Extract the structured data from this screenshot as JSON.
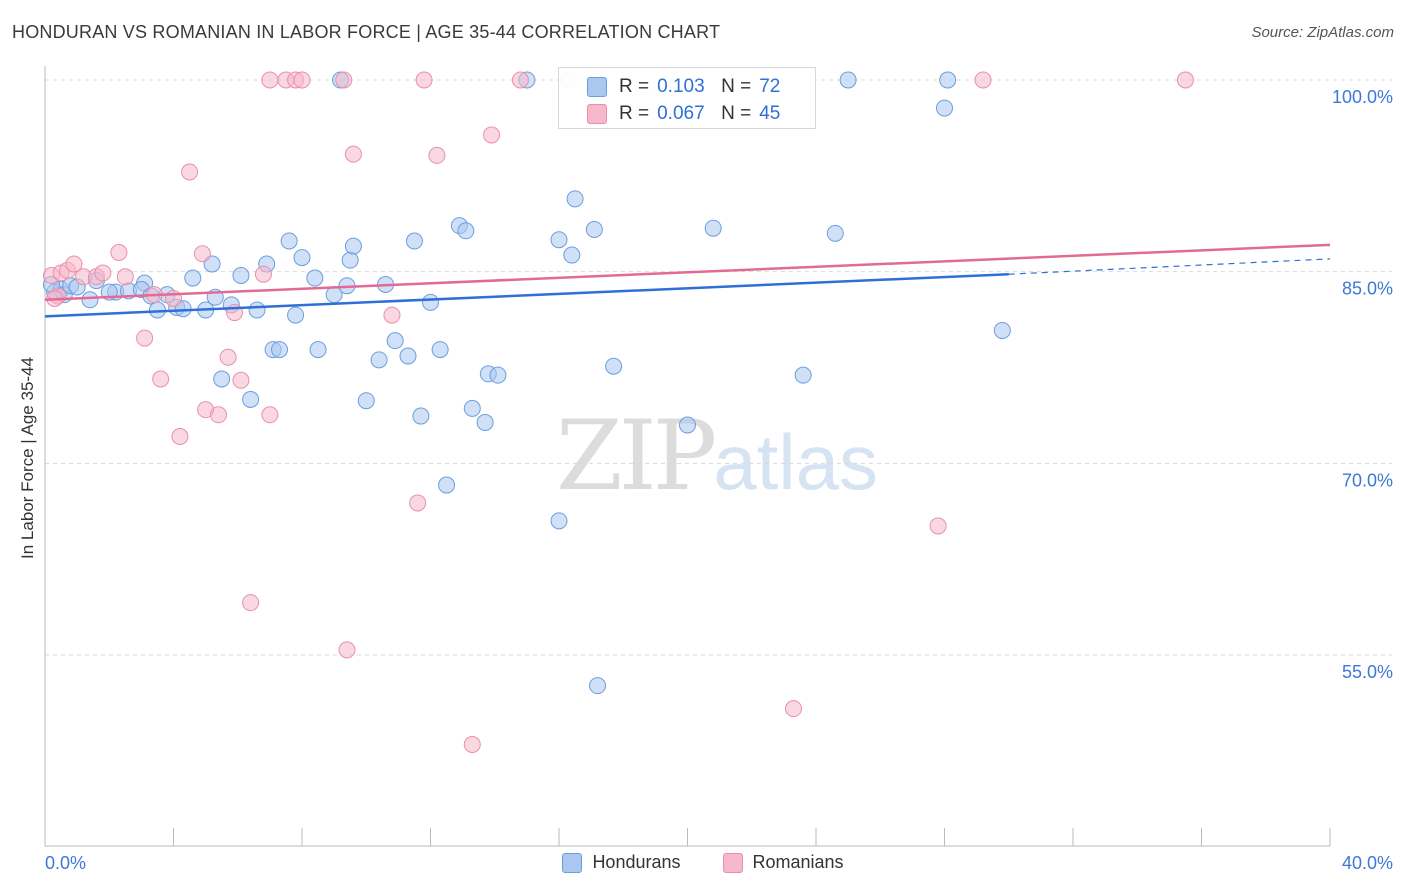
{
  "header": {
    "title": "HONDURAN VS ROMANIAN IN LABOR FORCE | AGE 35-44 CORRELATION CHART",
    "source": "Source: ZipAtlas.com"
  },
  "watermark": {
    "zip": "ZIP",
    "atlas": "atlas"
  },
  "legend": {
    "r_label": "R =",
    "n_label": "N =",
    "rows": [
      {
        "r": "0.103",
        "n": "72"
      },
      {
        "r": "0.067",
        "n": "45"
      }
    ]
  },
  "bottom_legend": {
    "items": [
      "Hondurans",
      "Romanians"
    ]
  },
  "chart_data": {
    "type": "scatter",
    "title": "HONDURAN VS ROMANIAN IN LABOR FORCE | AGE 35-44 CORRELATION CHART",
    "ylabel": "In Labor Force | Age 35-44",
    "xlim": [
      0,
      40
    ],
    "ylim": [
      42,
      102
    ],
    "x_tick_labels": [
      "0.0%",
      "40.0%"
    ],
    "y_ticks": [
      55,
      70,
      85,
      100
    ],
    "y_tick_labels": [
      "55.0%",
      "70.0%",
      "85.0%",
      "100.0%"
    ],
    "grid": "horizontal dashed",
    "legend_position": "top-center",
    "colors": {
      "hondurans_fill": "#a9c7ef",
      "hondurans_stroke": "#6b9ee0",
      "hondurans_line": "#2f6fd6",
      "romanians_fill": "#f6b8cb",
      "romanians_stroke": "#ea8fab",
      "romanians_line": "#e36a95",
      "tick_label": "#3d78d8"
    },
    "series": [
      {
        "name": "Hondurans",
        "r": 0.103,
        "n": 72,
        "trend": {
          "x": [
            0,
            30
          ],
          "y": [
            81.5,
            84.8
          ],
          "dashed_to": [
            40,
            86.0
          ]
        },
        "points": [
          [
            0.3,
            83.4
          ],
          [
            0.5,
            83.6
          ],
          [
            0.6,
            83.2
          ],
          [
            0.8,
            83.9
          ],
          [
            1.0,
            83.8
          ],
          [
            1.4,
            82.8
          ],
          [
            1.6,
            84.3
          ],
          [
            2.2,
            83.4
          ],
          [
            2.6,
            83.5
          ],
          [
            3.1,
            84.1
          ],
          [
            3.0,
            83.6
          ],
          [
            3.3,
            83.1
          ],
          [
            3.5,
            82.0
          ],
          [
            3.8,
            83.2
          ],
          [
            4.1,
            82.2
          ],
          [
            4.3,
            82.1
          ],
          [
            4.6,
            84.5
          ],
          [
            5.0,
            82.0
          ],
          [
            5.2,
            85.6
          ],
          [
            5.3,
            83.0
          ],
          [
            5.5,
            76.6
          ],
          [
            5.8,
            82.4
          ],
          [
            6.1,
            84.7
          ],
          [
            6.4,
            75.0
          ],
          [
            6.6,
            82.0
          ],
          [
            6.9,
            85.6
          ],
          [
            7.1,
            78.9
          ],
          [
            7.3,
            78.9
          ],
          [
            7.6,
            87.4
          ],
          [
            7.8,
            81.6
          ],
          [
            8.0,
            86.1
          ],
          [
            8.4,
            84.5
          ],
          [
            8.5,
            78.9
          ],
          [
            9.0,
            83.2
          ],
          [
            9.4,
            83.9
          ],
          [
            9.5,
            85.9
          ],
          [
            9.6,
            87.0
          ],
          [
            10.0,
            74.9
          ],
          [
            10.4,
            78.1
          ],
          [
            10.6,
            84.0
          ],
          [
            10.9,
            79.6
          ],
          [
            11.3,
            78.4
          ],
          [
            11.5,
            87.4
          ],
          [
            11.7,
            73.7
          ],
          [
            12.0,
            82.6
          ],
          [
            12.3,
            78.9
          ],
          [
            12.5,
            68.3
          ],
          [
            12.9,
            88.6
          ],
          [
            13.1,
            88.2
          ],
          [
            13.3,
            74.3
          ],
          [
            13.7,
            73.2
          ],
          [
            13.8,
            77.0
          ],
          [
            14.1,
            76.9
          ],
          [
            16.0,
            87.5
          ],
          [
            16.0,
            65.5
          ],
          [
            16.4,
            86.3
          ],
          [
            16.5,
            90.7
          ],
          [
            17.1,
            88.3
          ],
          [
            17.2,
            52.6
          ],
          [
            17.7,
            77.6
          ],
          [
            20.0,
            73.0
          ],
          [
            20.8,
            88.4
          ],
          [
            23.6,
            76.9
          ],
          [
            24.6,
            88.0
          ],
          [
            28.0,
            97.8
          ],
          [
            29.8,
            80.4
          ],
          [
            9.2,
            100.0
          ],
          [
            15.0,
            100.0
          ],
          [
            25.0,
            100.0
          ],
          [
            28.1,
            100.0
          ],
          [
            0.2,
            84.0
          ],
          [
            2.0,
            83.4
          ]
        ]
      },
      {
        "name": "Romanians",
        "r": 0.067,
        "n": 45,
        "trend": {
          "x": [
            0,
            40
          ],
          "y": [
            82.8,
            87.1
          ]
        },
        "points": [
          [
            0.2,
            84.7
          ],
          [
            0.4,
            83.1
          ],
          [
            0.5,
            84.9
          ],
          [
            0.7,
            85.1
          ],
          [
            0.9,
            85.6
          ],
          [
            1.2,
            84.6
          ],
          [
            1.6,
            84.6
          ],
          [
            1.8,
            84.9
          ],
          [
            2.3,
            86.5
          ],
          [
            2.5,
            84.6
          ],
          [
            3.1,
            79.8
          ],
          [
            3.4,
            83.2
          ],
          [
            3.6,
            76.6
          ],
          [
            4.0,
            82.9
          ],
          [
            4.2,
            72.1
          ],
          [
            4.5,
            92.8
          ],
          [
            4.9,
            86.4
          ],
          [
            5.0,
            74.2
          ],
          [
            5.4,
            73.8
          ],
          [
            5.7,
            78.3
          ],
          [
            5.9,
            81.8
          ],
          [
            6.1,
            76.5
          ],
          [
            6.4,
            59.1
          ],
          [
            6.8,
            84.8
          ],
          [
            7.0,
            73.8
          ],
          [
            7.0,
            100.0
          ],
          [
            7.5,
            100.0
          ],
          [
            7.8,
            100.0
          ],
          [
            8.0,
            100.0
          ],
          [
            9.3,
            100.0
          ],
          [
            9.6,
            94.2
          ],
          [
            9.4,
            55.4
          ],
          [
            10.8,
            81.6
          ],
          [
            11.6,
            66.9
          ],
          [
            11.8,
            100.0
          ],
          [
            12.2,
            94.1
          ],
          [
            13.3,
            48.0
          ],
          [
            13.9,
            95.7
          ],
          [
            14.8,
            100.0
          ],
          [
            16.3,
            100.0
          ],
          [
            23.3,
            50.8
          ],
          [
            27.8,
            65.1
          ],
          [
            29.2,
            100.0
          ],
          [
            35.5,
            100.0
          ],
          [
            0.3,
            82.9
          ]
        ]
      }
    ]
  }
}
